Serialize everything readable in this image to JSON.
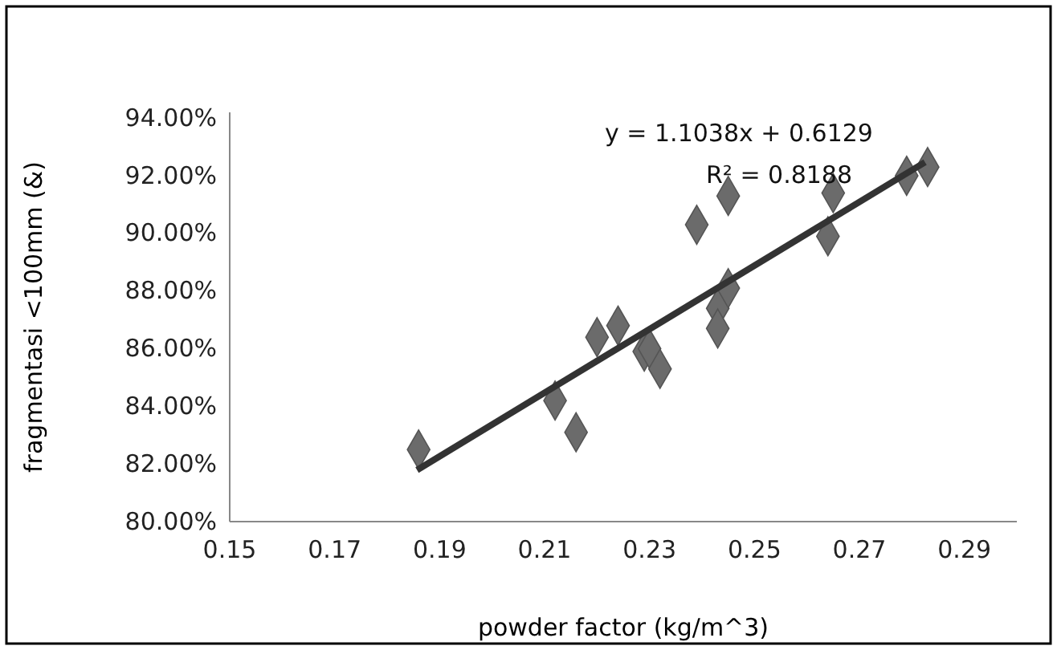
{
  "chart_data": {
    "type": "scatter",
    "xlabel": "powder factor (kg/m^3)",
    "ylabel": "fragmentasi <100mm (&)",
    "xlim": [
      0.15,
      0.3
    ],
    "xticks": [
      0.15,
      0.17,
      0.19,
      0.21,
      0.23,
      0.25,
      0.27,
      0.29
    ],
    "ylim": [
      80,
      94.2
    ],
    "yticks": [
      {
        "value": 80,
        "label": "80.00%"
      },
      {
        "value": 82,
        "label": "82.00%"
      },
      {
        "value": 84,
        "label": "84.00%"
      },
      {
        "value": 86,
        "label": "86.00%"
      },
      {
        "value": 88,
        "label": "88.00%"
      },
      {
        "value": 90,
        "label": "90.00%"
      },
      {
        "value": 92,
        "label": "92.00%"
      },
      {
        "value": 94,
        "label": "94.00%"
      }
    ],
    "grid": false,
    "marker": "diamond",
    "series": [
      {
        "color": "#6b6b6b",
        "x": [
          0.186,
          0.212,
          0.216,
          0.224,
          0.22,
          0.229,
          0.23,
          0.232,
          0.243,
          0.243,
          0.245,
          0.239,
          0.245,
          0.264,
          0.265,
          0.279,
          0.283
        ],
        "values": [
          82.5,
          84.2,
          83.1,
          86.8,
          86.4,
          85.9,
          86.0,
          85.3,
          87.4,
          86.7,
          88.1,
          90.3,
          91.3,
          89.9,
          91.4,
          92.0,
          92.3
        ]
      },
      {
        "type": "line",
        "color": "#333333",
        "line_style": "solid",
        "marker": "none",
        "x": [
          0.1857,
          0.2825
        ],
        "values": [
          81.79,
          92.47
        ]
      }
    ],
    "annotations": [
      "y = 1.1038x + 0.6129",
      "R² = 0.8188"
    ]
  }
}
